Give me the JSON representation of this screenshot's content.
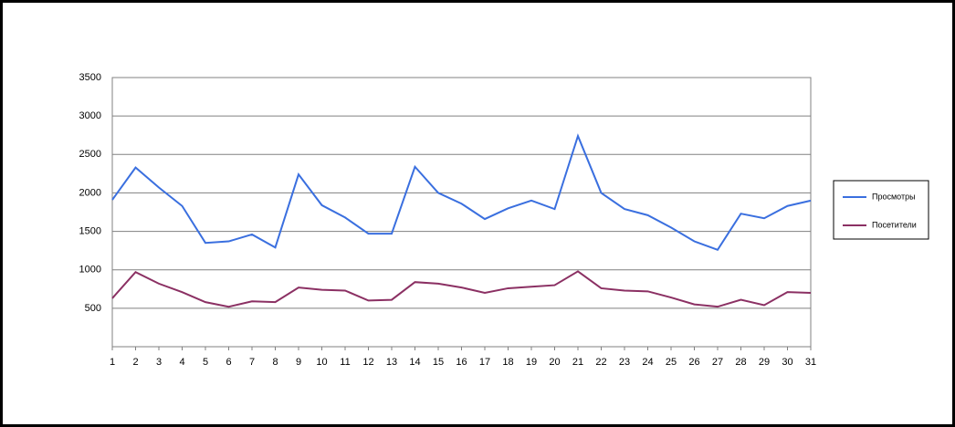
{
  "chart_data": {
    "type": "line",
    "x": [
      1,
      2,
      3,
      4,
      5,
      6,
      7,
      8,
      9,
      10,
      11,
      12,
      13,
      14,
      15,
      16,
      17,
      18,
      19,
      20,
      21,
      22,
      23,
      24,
      25,
      26,
      27,
      28,
      29,
      30,
      31
    ],
    "series": [
      {
        "name": "Просмотры",
        "color": "#3a6fdf",
        "values": [
          1910,
          2330,
          2070,
          1830,
          1350,
          1370,
          1460,
          1290,
          2240,
          1840,
          1680,
          1470,
          1470,
          2340,
          2000,
          1860,
          1660,
          1800,
          1900,
          1790,
          2740,
          2000,
          1790,
          1710,
          1550,
          1370,
          1260,
          1730,
          1670,
          1830,
          1900
        ]
      },
      {
        "name": "Посетители",
        "color": "#8b3063",
        "values": [
          630,
          970,
          820,
          710,
          580,
          520,
          590,
          580,
          770,
          740,
          730,
          600,
          610,
          840,
          820,
          770,
          700,
          760,
          780,
          800,
          980,
          760,
          730,
          720,
          640,
          550,
          520,
          610,
          540,
          710,
          700
        ]
      }
    ],
    "xlim": [
      1,
      31
    ],
    "xticks": [
      1,
      2,
      3,
      4,
      5,
      6,
      7,
      8,
      9,
      10,
      11,
      12,
      13,
      14,
      15,
      16,
      17,
      18,
      19,
      20,
      21,
      22,
      23,
      24,
      25,
      26,
      27,
      28,
      29,
      30,
      31
    ],
    "ylim": [
      0,
      3500
    ],
    "yticks": [
      500,
      1000,
      1500,
      2000,
      2500,
      3000,
      3500
    ],
    "grid": true,
    "legend": "right"
  }
}
